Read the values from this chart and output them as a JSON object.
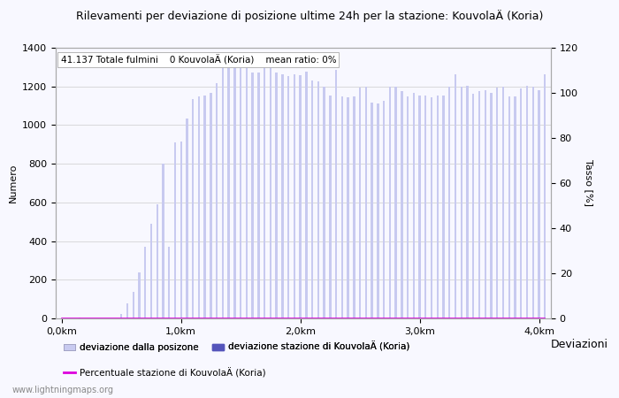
{
  "title": "Rilevamenti per deviazione di posizione ultime 24h per la stazione: KouvolaÄ (Koria)",
  "subtitle": "41.137 Totale fulmini    0 KouvolaÄ (Koria)    mean ratio: 0%",
  "ylabel_left": "Numero",
  "ylabel_right": "Tasso [%]",
  "x_label_right": "Deviazioni",
  "watermark": "www.lightningmaps.org",
  "ylim_left": [
    0,
    1400
  ],
  "ylim_right": [
    0,
    120
  ],
  "bar_color_light": "#c8caf0",
  "bar_color_dark": "#5555bb",
  "line_color": "#dd00dd",
  "background_color": "#f8f8ff",
  "grid_color": "#cccccc",
  "x_tick_labels": [
    "0,0km",
    "1,0km",
    "2,0km",
    "3,0km",
    "4,0km"
  ],
  "x_tick_positions": [
    0,
    20,
    40,
    60,
    80
  ],
  "bar_width": 0.35,
  "bar_values": [
    0,
    0,
    0,
    5,
    0,
    0,
    0,
    0,
    2,
    0,
    25,
    80,
    135,
    240,
    372,
    490,
    590,
    800,
    370,
    910,
    915,
    1035,
    1135,
    1150,
    1155,
    1165,
    1215,
    1310,
    1320,
    1325,
    1295,
    1300,
    1270,
    1270,
    1360,
    1340,
    1270,
    1265,
    1255,
    1265,
    1260,
    1275,
    1230,
    1225,
    1200,
    1155,
    1285,
    1150,
    1145,
    1150,
    1195,
    1200,
    1115,
    1110,
    1125,
    1200,
    1200,
    1175,
    1150,
    1165,
    1155,
    1155,
    1145,
    1155,
    1155,
    1200,
    1265,
    1200,
    1205,
    1160,
    1175,
    1180,
    1165,
    1195,
    1200,
    1150,
    1150,
    1190,
    1205,
    1200,
    1180,
    1265
  ],
  "station_bar_values": [
    0,
    0,
    0,
    0,
    0,
    0,
    0,
    0,
    0,
    0,
    0,
    0,
    0,
    0,
    0,
    0,
    0,
    0,
    0,
    0,
    0,
    0,
    0,
    0,
    0,
    0,
    0,
    0,
    0,
    0,
    0,
    0,
    0,
    0,
    0,
    0,
    0,
    0,
    0,
    0,
    0,
    0,
    0,
    0,
    0,
    0,
    0,
    0,
    0,
    0,
    0,
    0,
    0,
    0,
    0,
    0,
    0,
    0,
    0,
    0,
    0,
    0,
    0,
    0,
    0,
    0,
    0,
    0,
    0,
    0,
    0,
    0,
    0,
    0,
    0,
    0,
    0,
    0,
    0,
    0,
    0,
    0
  ],
  "ratio_values": [
    0,
    0,
    0,
    0,
    0,
    0,
    0,
    0,
    0,
    0,
    0,
    0,
    0,
    0,
    0,
    0,
    0,
    0,
    0,
    0,
    0,
    0,
    0,
    0,
    0,
    0,
    0,
    0,
    0,
    0,
    0,
    0,
    0,
    0,
    0,
    0,
    0,
    0,
    0,
    0,
    0,
    0,
    0,
    0,
    0,
    0,
    0,
    0,
    0,
    0,
    0,
    0,
    0,
    0,
    0,
    0,
    0,
    0,
    0,
    0,
    0,
    0,
    0,
    0,
    0,
    0,
    0,
    0,
    0,
    0,
    0,
    0,
    0,
    0,
    0,
    0,
    0,
    0,
    0,
    0,
    0,
    0
  ],
  "legend_label_light": "deviazione dalla posizone",
  "legend_label_dark": "deviazione stazione di KouvolaÄ (Koria)",
  "legend_label_line": "Percentuale stazione di KouvolaÄ (Koria)"
}
